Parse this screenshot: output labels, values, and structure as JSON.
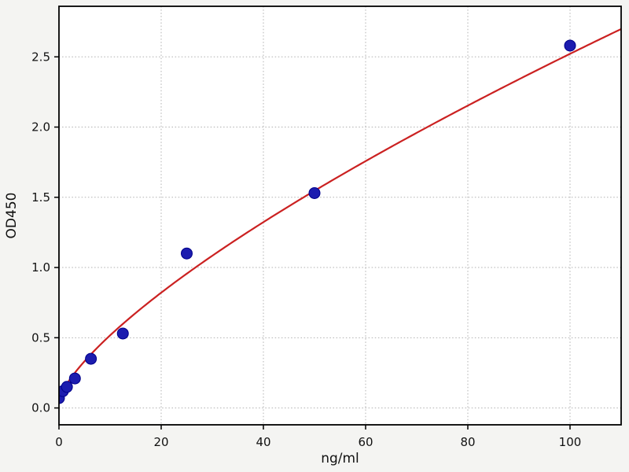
{
  "chart_data": {
    "type": "scatter",
    "title": "",
    "xlabel": "ng/ml",
    "ylabel": "OD450",
    "xlim": [
      0,
      110
    ],
    "ylim": [
      -0.12,
      2.86
    ],
    "xticks": [
      0,
      20,
      40,
      60,
      80,
      100
    ],
    "yticks": [
      0.0,
      0.5,
      1.0,
      1.5,
      2.0,
      2.5
    ],
    "grid": true,
    "grid_style": "dotted",
    "legend_position": "none",
    "points": {
      "x": [
        0,
        0.78,
        1.56,
        3.12,
        6.25,
        12.5,
        25,
        50,
        100
      ],
      "y": [
        0.07,
        0.12,
        0.15,
        0.21,
        0.35,
        0.53,
        1.1,
        1.53,
        2.58
      ]
    },
    "fit_curve": {
      "model": "power",
      "formula": "y = c + a * x^b",
      "a": 0.0881,
      "b": 0.724,
      "c": 0.05
    },
    "colors": {
      "point": "#1c1caf",
      "point_edge": "#00008b",
      "curve": "#cb2121",
      "grid": "#b0b0b0",
      "background": "#f4f4f2",
      "plot_bg": "#ffffff",
      "spine": "#000000",
      "text": "#111111"
    }
  }
}
